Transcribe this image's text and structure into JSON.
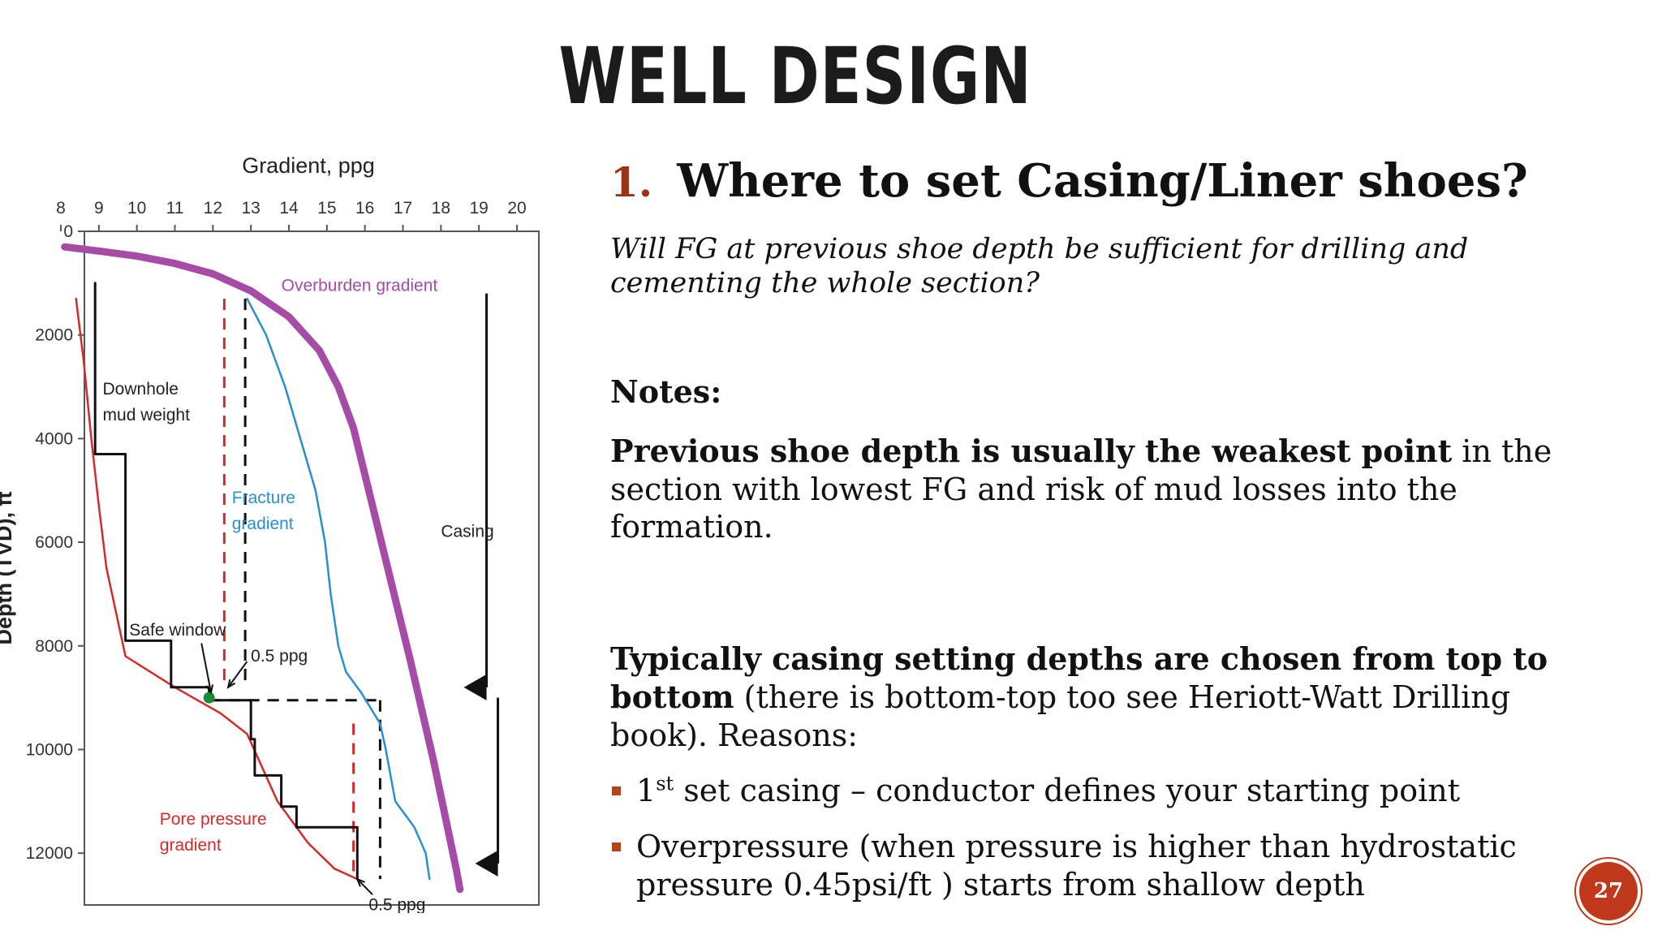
{
  "slide": {
    "title": "WELL DESIGN",
    "page_number": "27",
    "accent_color": "#c0391b"
  },
  "content": {
    "question_number": "1.",
    "question": "Where to set Casing/Liner shoes?",
    "question_sub": "Will FG at previous shoe depth be sufficient for drilling and cementing the whole section?",
    "notes_heading": "Notes:",
    "note1_bold": "Previous shoe depth is usually the weakest point",
    "note1_rest": " in the section with lowest FG and risk of mud losses into the formation.",
    "note2_bold": "Typically casing setting depths are chosen from top to bottom",
    "note2_rest": " (there is bottom-top too see Heriott-Watt Drilling book). Reasons:",
    "bullets": [
      {
        "pre": "1",
        "sup": "st",
        "text": " set casing – conductor defines your starting point"
      },
      {
        "pre": "",
        "sup": "",
        "text": "Overpressure (when pressure is higher than hydrostatic pressure 0.45psi/ft ) starts from shallow depth"
      }
    ]
  },
  "chart_data": {
    "type": "line",
    "xlabel": "Gradient, ppg",
    "ylabel": "Depth (TVD), ft",
    "x_axis_position": "top",
    "xlim": [
      8,
      20
    ],
    "ylim": [
      0,
      13000
    ],
    "x_ticks": [
      8,
      9,
      10,
      11,
      12,
      13,
      14,
      15,
      16,
      17,
      18,
      19,
      20
    ],
    "y_ticks": [
      0,
      2000,
      4000,
      6000,
      8000,
      10000,
      12000
    ],
    "series": [
      {
        "name": "Overburden gradient",
        "color": "#a64ca6",
        "points": [
          [
            8.1,
            300
          ],
          [
            9,
            380
          ],
          [
            10,
            480
          ],
          [
            11,
            620
          ],
          [
            12,
            820
          ],
          [
            13,
            1150
          ],
          [
            14,
            1650
          ],
          [
            14.8,
            2300
          ],
          [
            15.3,
            3000
          ],
          [
            15.7,
            3800
          ],
          [
            16.1,
            5000
          ],
          [
            16.6,
            6500
          ],
          [
            17.2,
            8300
          ],
          [
            17.8,
            10200
          ],
          [
            18.4,
            12300
          ],
          [
            18.5,
            12700
          ]
        ]
      },
      {
        "name": "Fracture gradient",
        "color": "#2a8fd0",
        "points": [
          [
            12.9,
            1300
          ],
          [
            13.4,
            2000
          ],
          [
            13.9,
            3000
          ],
          [
            14.3,
            4000
          ],
          [
            14.7,
            5000
          ],
          [
            14.95,
            6000
          ],
          [
            15.1,
            7000
          ],
          [
            15.3,
            8000
          ],
          [
            15.5,
            8500
          ],
          [
            15.9,
            8900
          ],
          [
            16.4,
            9500
          ],
          [
            16.55,
            10000
          ],
          [
            16.8,
            11000
          ],
          [
            17.3,
            11500
          ],
          [
            17.6,
            12000
          ],
          [
            17.7,
            12500
          ]
        ]
      },
      {
        "name": "Pore pressure gradient",
        "color": "#d42a2a",
        "points": [
          [
            8.4,
            1300
          ],
          [
            8.6,
            2500
          ],
          [
            8.8,
            4000
          ],
          [
            9.0,
            5300
          ],
          [
            9.2,
            6500
          ],
          [
            9.7,
            8200
          ],
          [
            11,
            8800
          ],
          [
            12.2,
            9300
          ],
          [
            12.9,
            9700
          ],
          [
            13.7,
            11000
          ],
          [
            14.5,
            11800
          ],
          [
            15.2,
            12300
          ],
          [
            15.8,
            12500
          ]
        ]
      },
      {
        "name": "Downhole mud weight",
        "color": "#111111",
        "points": [
          [
            8.9,
            1000
          ],
          [
            8.9,
            4300
          ],
          [
            9.7,
            4300
          ],
          [
            9.7,
            7900
          ],
          [
            10.9,
            7900
          ],
          [
            10.9,
            8800
          ],
          [
            11.9,
            8800
          ],
          [
            11.9,
            9050
          ],
          [
            13.0,
            9050
          ],
          [
            13.0,
            9800
          ],
          [
            13.1,
            9800
          ],
          [
            13.1,
            10500
          ],
          [
            13.8,
            10500
          ],
          [
            13.8,
            11100
          ],
          [
            14.2,
            11100
          ],
          [
            14.2,
            11500
          ],
          [
            15.8,
            11500
          ],
          [
            15.8,
            12500
          ]
        ]
      }
    ],
    "casing_label": "Casing",
    "casing_shoes_ft": [
      8800,
      12200
    ],
    "annotations": {
      "overburden_label": "Overburden gradient",
      "fracture_label_line1": "Fracture",
      "fracture_label_line2": "gradient",
      "pore_label_line1": "Pore pressure",
      "pore_label_line2": "gradient",
      "mud_label_line1": "Downhole",
      "mud_label_line2": "mud weight",
      "safe_window": "Safe window",
      "margin_top": "0.5 ppg",
      "margin_bottom": "0.5 ppg"
    }
  }
}
